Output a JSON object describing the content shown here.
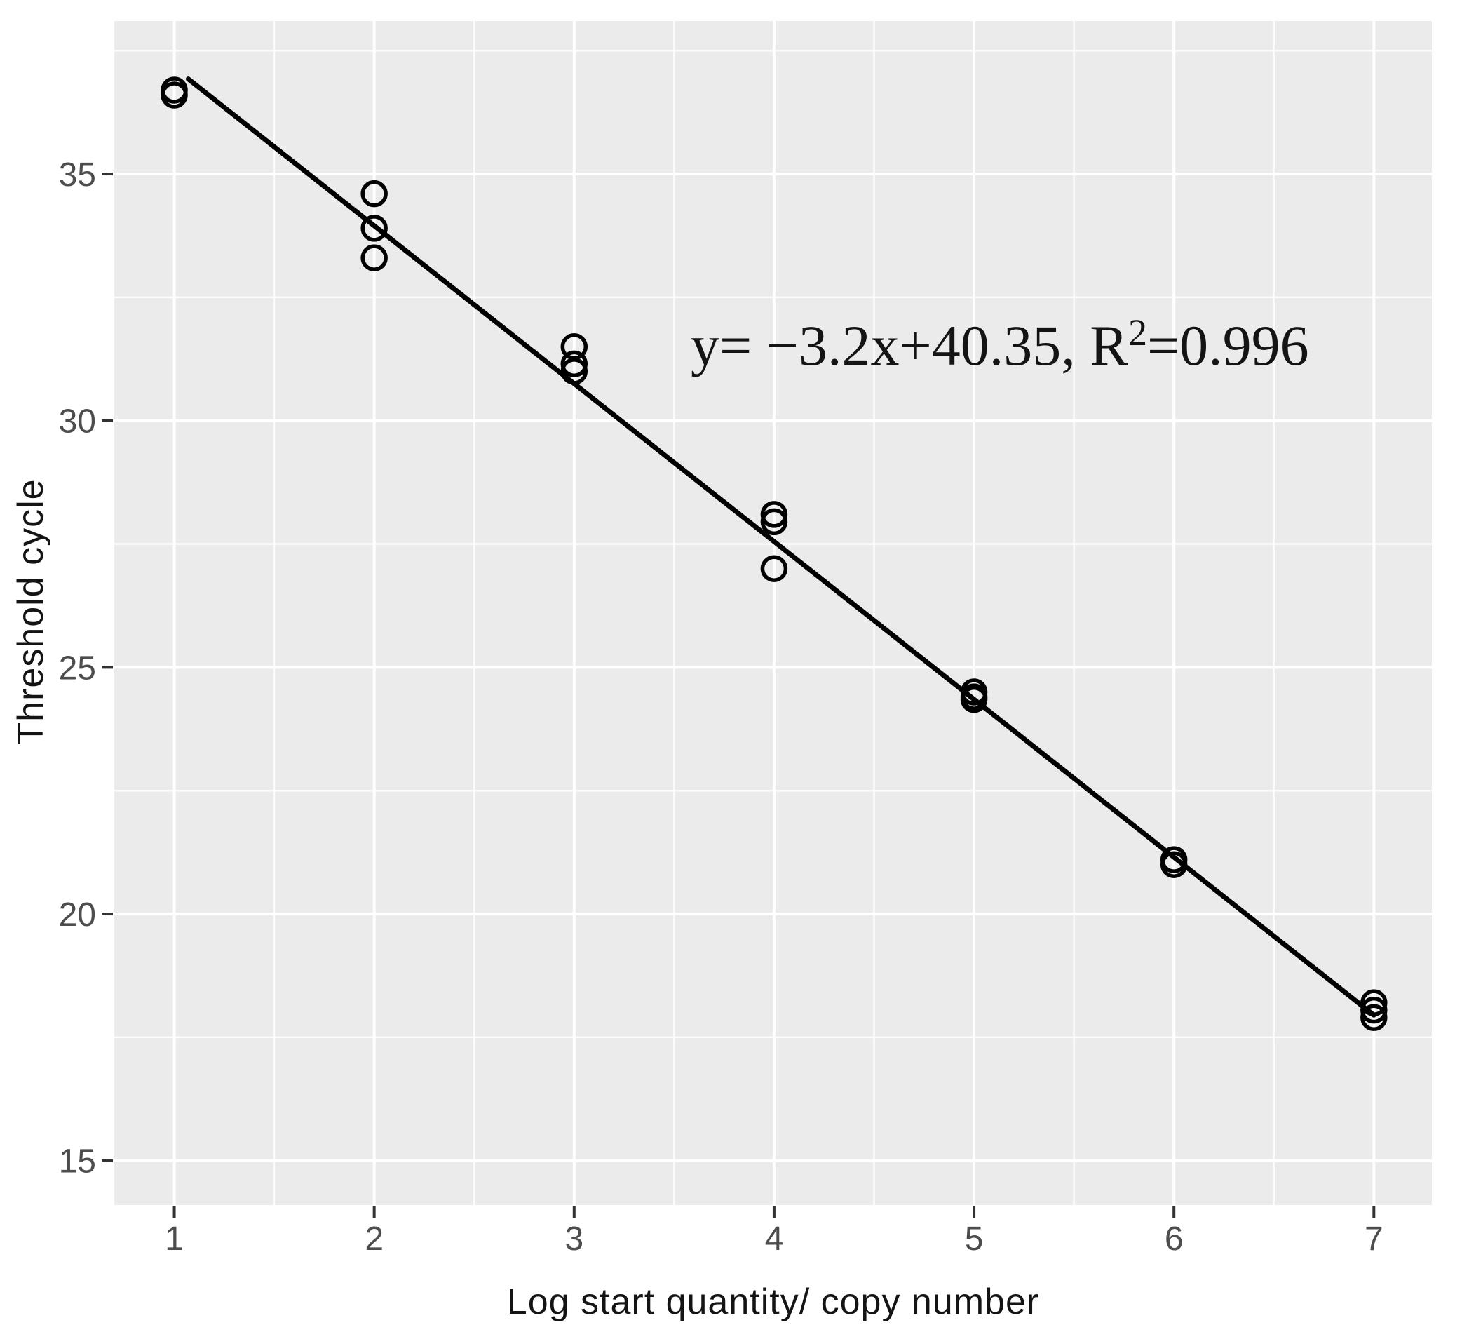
{
  "chart_data": {
    "type": "scatter",
    "title": "",
    "xlabel": "Log start quantity/ copy number",
    "ylabel": "Threshold cycle",
    "x_ticks": [
      1,
      2,
      3,
      4,
      5,
      6,
      7
    ],
    "y_ticks": [
      15,
      20,
      25,
      30,
      35
    ],
    "x_minor": [
      1.5,
      2.5,
      3.5,
      4.5,
      5.5,
      6.5
    ],
    "y_minor": [
      17.5,
      22.5,
      27.5,
      32.5,
      37.5
    ],
    "xlim": [
      0.7,
      7.29
    ],
    "ylim": [
      14.1,
      38.1
    ],
    "grid": "on",
    "legend_position": "none",
    "points": [
      {
        "x": 1,
        "y": 36.7
      },
      {
        "x": 1,
        "y": 36.6
      },
      {
        "x": 2,
        "y": 34.6
      },
      {
        "x": 2,
        "y": 33.9
      },
      {
        "x": 2,
        "y": 33.3
      },
      {
        "x": 3,
        "y": 31.5
      },
      {
        "x": 3,
        "y": 31.15
      },
      {
        "x": 3,
        "y": 31.0
      },
      {
        "x": 4,
        "y": 28.1
      },
      {
        "x": 4,
        "y": 27.95
      },
      {
        "x": 4,
        "y": 27.0
      },
      {
        "x": 5,
        "y": 24.5
      },
      {
        "x": 5,
        "y": 24.4
      },
      {
        "x": 5,
        "y": 24.35
      },
      {
        "x": 6,
        "y": 21.1
      },
      {
        "x": 6,
        "y": 21.0
      },
      {
        "x": 7,
        "y": 18.2
      },
      {
        "x": 7,
        "y": 18.05
      },
      {
        "x": 7,
        "y": 17.9
      }
    ],
    "regression": {
      "slope": -3.2,
      "intercept": 40.35,
      "r_squared": 0.996,
      "x_start": 1.07,
      "x_end": 7.0
    },
    "annotation": {
      "text": "y= −3.2x+40.35, R²=0.996",
      "prefix": "y= −3.2x+40.35, R",
      "sup": "2",
      "suffix": "=0.996"
    },
    "colors": {
      "panel": "#ebebeb",
      "grid_major": "#ffffff",
      "grid_minor": "#ffffff",
      "point": "#000000",
      "line": "#000000",
      "tick_label": "#4d4d4d",
      "axis_title": "#141414",
      "tick_mark": "#333333"
    }
  }
}
